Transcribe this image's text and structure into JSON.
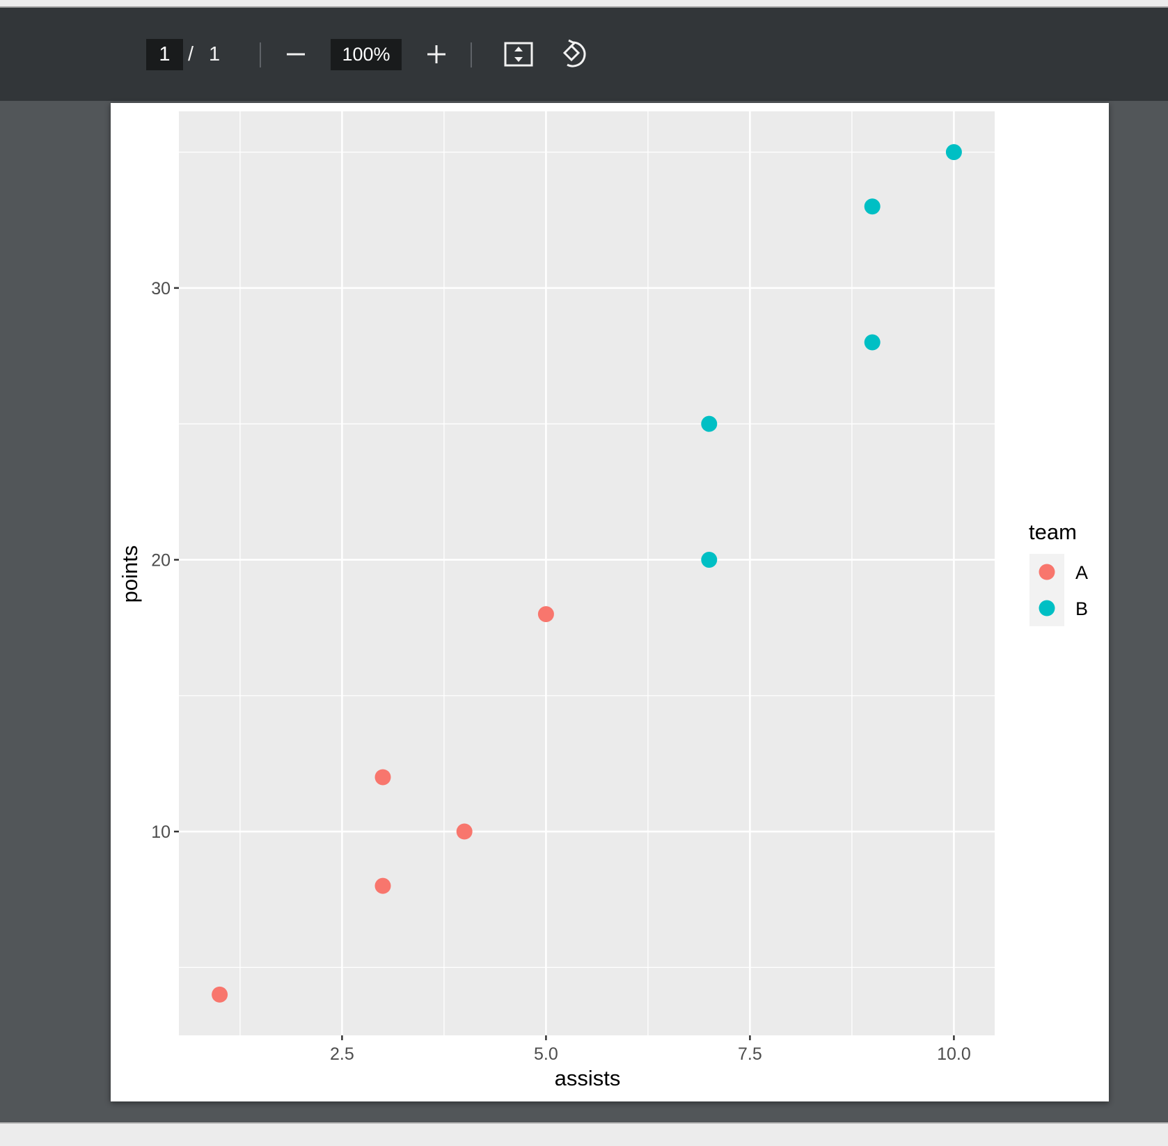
{
  "toolbar": {
    "current_page": "1",
    "page_separator": "/",
    "total_pages": "1",
    "zoom_out_icon": "minus-icon",
    "zoom_level": "100%",
    "zoom_in_icon": "plus-icon",
    "fit_icon": "fit-to-page-icon",
    "rotate_icon": "rotate-icon"
  },
  "chart_data": {
    "type": "scatter",
    "xlabel": "assists",
    "ylabel": "points",
    "xlim": [
      0.5,
      10.5
    ],
    "ylim": [
      2.5,
      36.5
    ],
    "xticks": [
      2.5,
      5.0,
      7.5,
      10.0
    ],
    "xtick_labels": [
      "2.5",
      "5.0",
      "7.5",
      "10.0"
    ],
    "yticks": [
      10,
      20,
      30
    ],
    "ytick_labels": [
      "10",
      "20",
      "30"
    ],
    "grid": true,
    "panel_background": "#ebebeb",
    "legend": {
      "title": "team",
      "placement": "right",
      "entries": [
        {
          "label": "A",
          "color": "#f8766d"
        },
        {
          "label": "B",
          "color": "#00bfc4"
        }
      ]
    },
    "series": [
      {
        "name": "A",
        "color": "#f8766d",
        "points": [
          [
            1,
            4
          ],
          [
            3,
            8
          ],
          [
            3,
            12
          ],
          [
            4,
            10
          ],
          [
            5,
            18
          ]
        ]
      },
      {
        "name": "B",
        "color": "#00bfc4",
        "points": [
          [
            7,
            20
          ],
          [
            7,
            25
          ],
          [
            9,
            28
          ],
          [
            9,
            33
          ],
          [
            10,
            35
          ]
        ]
      }
    ]
  }
}
